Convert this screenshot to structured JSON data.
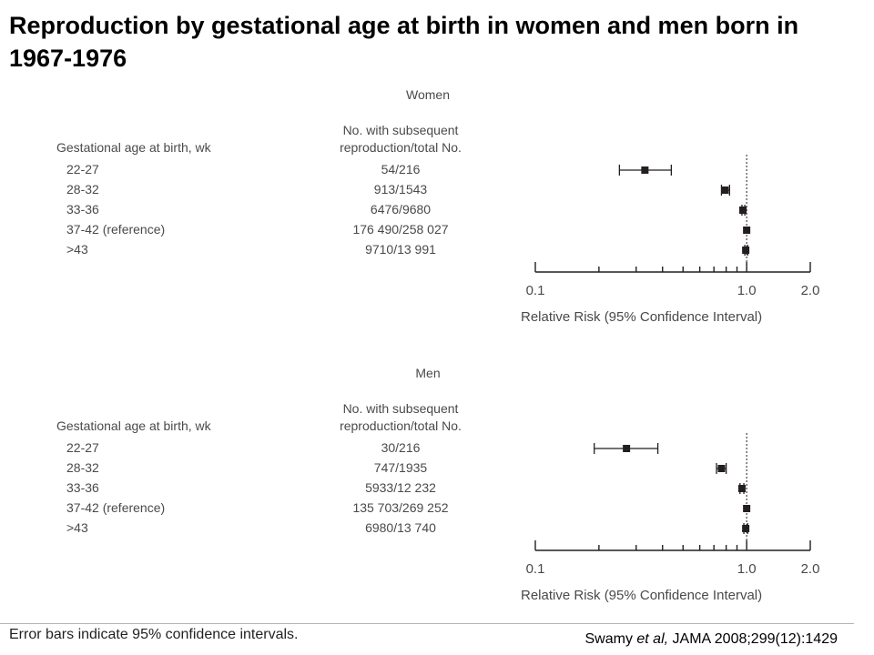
{
  "title": "Reproduction by gestational age at birth in women and men born in 1967-1976",
  "footnote": "Error bars indicate 95% confidence intervals.",
  "citation": {
    "authors": "Swamy",
    "etal": "et al,",
    "journal": "JAMA 2008;299(12):1429"
  },
  "chart_data": [
    {
      "type": "forest",
      "panel_title": "Women",
      "row_header": "Gestational age at birth, wk",
      "count_header_line1": "No. with subsequent",
      "count_header_line2": "reproduction/total No.",
      "xlabel": "Relative Risk (95% Confidence Interval)",
      "x_scale": "log",
      "xlim": [
        0.1,
        2.0
      ],
      "x_ticks": [
        0.1,
        1.0,
        2.0
      ],
      "x_tick_labels": [
        "0.1",
        "1.0",
        "2.0"
      ],
      "reference_value": 1.0,
      "rows": [
        {
          "label": "22-27",
          "count": "54/216",
          "rr": 0.33,
          "ci_low": 0.25,
          "ci_high": 0.44
        },
        {
          "label": "28-32",
          "count": "913/1543",
          "rr": 0.79,
          "ci_low": 0.76,
          "ci_high": 0.83
        },
        {
          "label": "33-36",
          "count": "6476/9680",
          "rr": 0.96,
          "ci_low": 0.95,
          "ci_high": 0.98
        },
        {
          "label": "37-42 (reference)",
          "count": "176 490/258 027",
          "rr": 1.0,
          "ci_low": 1.0,
          "ci_high": 1.0
        },
        {
          "label": ">43",
          "count": "9710/13 991",
          "rr": 0.99,
          "ci_low": 0.98,
          "ci_high": 1.01
        }
      ]
    },
    {
      "type": "forest",
      "panel_title": "Men",
      "row_header": "Gestational age at birth, wk",
      "count_header_line1": "No. with subsequent",
      "count_header_line2": "reproduction/total No.",
      "xlabel": "Relative Risk (95% Confidence Interval)",
      "x_scale": "log",
      "xlim": [
        0.1,
        2.0
      ],
      "x_ticks": [
        0.1,
        1.0,
        2.0
      ],
      "x_tick_labels": [
        "0.1",
        "1.0",
        "2.0"
      ],
      "reference_value": 1.0,
      "rows": [
        {
          "label": "22-27",
          "count": "30/216",
          "rr": 0.27,
          "ci_low": 0.19,
          "ci_high": 0.38
        },
        {
          "label": "28-32",
          "count": "747/1935",
          "rr": 0.76,
          "ci_low": 0.72,
          "ci_high": 0.8
        },
        {
          "label": "33-36",
          "count": "5933/12 232",
          "rr": 0.95,
          "ci_low": 0.93,
          "ci_high": 0.97
        },
        {
          "label": "37-42 (reference)",
          "count": "135 703/269 252",
          "rr": 1.0,
          "ci_low": 1.0,
          "ci_high": 1.0
        },
        {
          "label": ">43",
          "count": "6980/13 740",
          "rr": 0.99,
          "ci_low": 0.97,
          "ci_high": 1.01
        }
      ]
    }
  ]
}
